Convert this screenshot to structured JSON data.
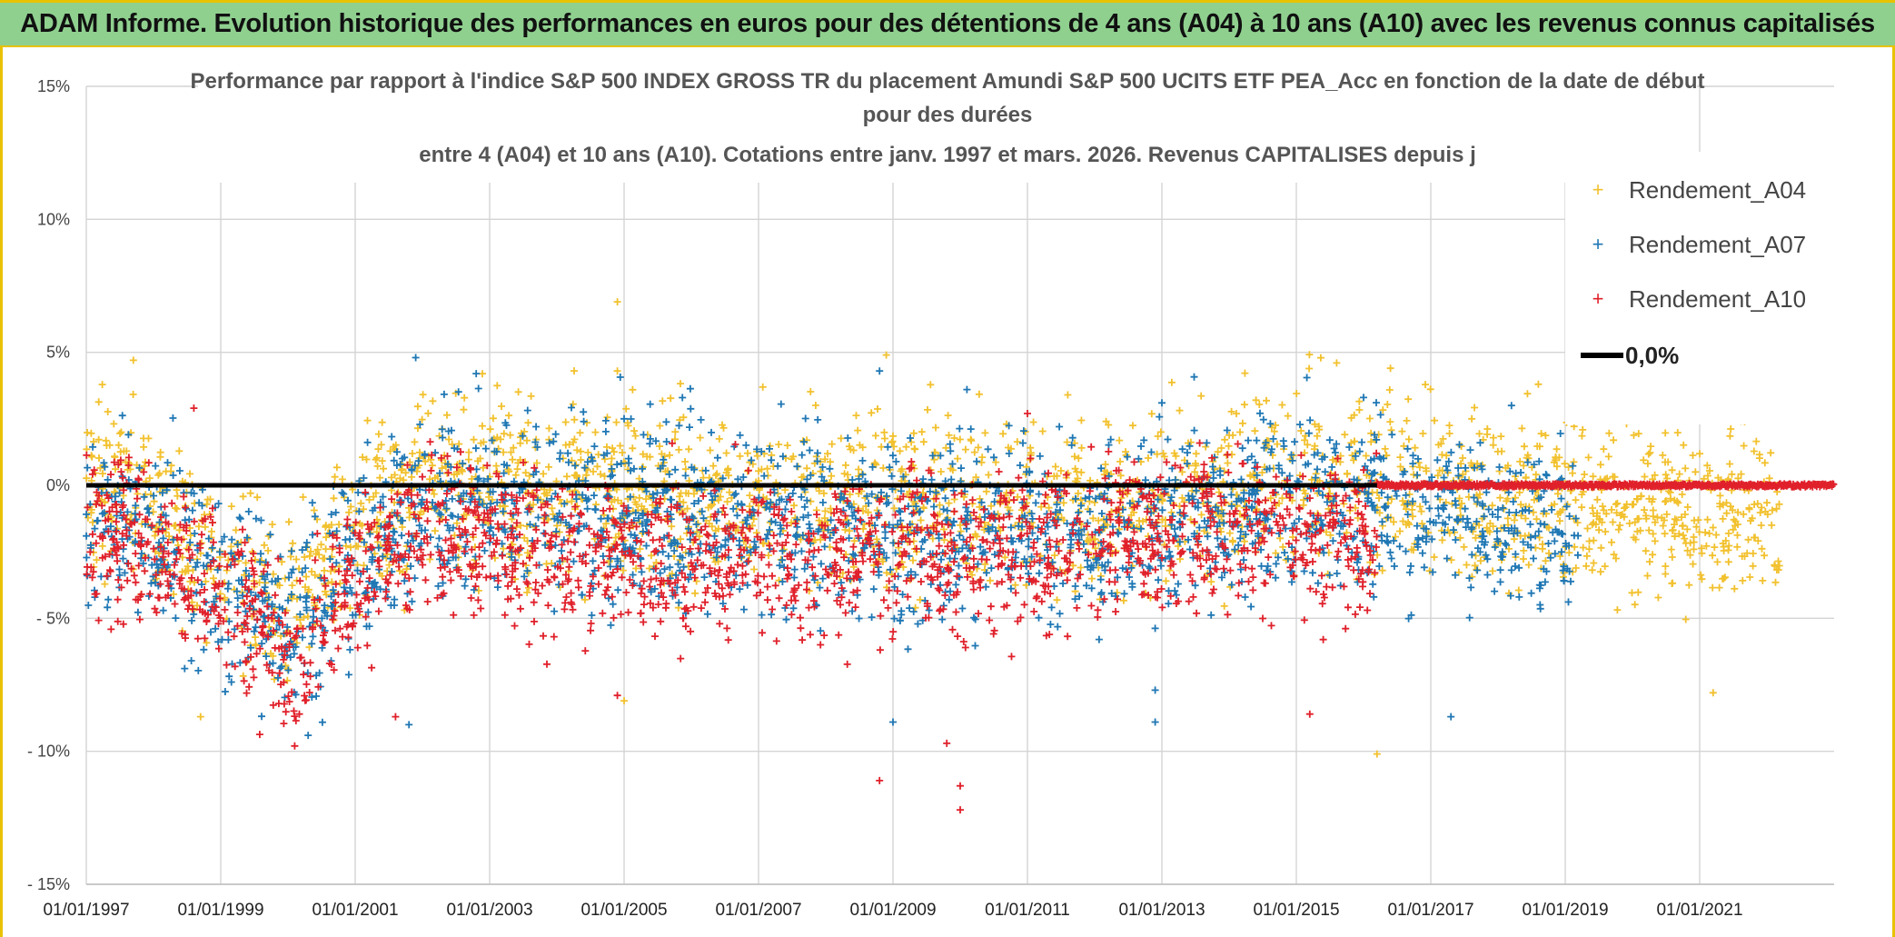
{
  "header": {
    "title": "ADAM Informe. Evolution historique des performances en euros pour des détentions de 4 ans (A04) à 10 ans (A10) avec les revenus connus capitalisés"
  },
  "chart_data": {
    "type": "scatter",
    "title_lines": [
      "Performance par rapport à l'indice S&P 500 INDEX GROSS TR  du placement Amundi S&P 500 UCITS ETF PEA_Acc en fonction de la date de début",
      "pour des durées",
      "entre 4 (A04) et 10 ans (A10). Cotations entre janv. 1997 et mars. 2026. Revenus CAPITALISES depuis j"
    ],
    "xlabel": "",
    "ylabel": "",
    "x_range_years": [
      1997.0,
      2023.0
    ],
    "ylim": [
      -15,
      15
    ],
    "y_ticks": [
      {
        "value": 15,
        "label": "15%"
      },
      {
        "value": 10,
        "label": "10%"
      },
      {
        "value": 5,
        "label": "5%"
      },
      {
        "value": 0,
        "label": "0%"
      },
      {
        "value": -5,
        "label": "- 5%"
      },
      {
        "value": -10,
        "label": "- 10%"
      },
      {
        "value": -15,
        "label": "- 15%"
      }
    ],
    "x_ticks": [
      {
        "value": 1997,
        "label": "01/01/1997"
      },
      {
        "value": 1999,
        "label": "01/01/1999"
      },
      {
        "value": 2001,
        "label": "01/01/2001"
      },
      {
        "value": 2003,
        "label": "01/01/2003"
      },
      {
        "value": 2005,
        "label": "01/01/2005"
      },
      {
        "value": 2007,
        "label": "01/01/2007"
      },
      {
        "value": 2009,
        "label": "01/01/2009"
      },
      {
        "value": 2011,
        "label": "01/01/2011"
      },
      {
        "value": 2013,
        "label": "01/01/2013"
      },
      {
        "value": 2015,
        "label": "01/01/2015"
      },
      {
        "value": 2017,
        "label": "01/01/2017"
      },
      {
        "value": 2019,
        "label": "01/01/2019"
      },
      {
        "value": 2021,
        "label": "01/01/2021"
      }
    ],
    "grid": true,
    "legend_position": "top-right",
    "series": [
      {
        "name": "Rendement_A04",
        "color": "#f2c12e",
        "marker": "+",
        "x_start": 1997.0,
        "x_end": 2022.2,
        "trend": [
          [
            1997.0,
            0.5
          ],
          [
            1998.0,
            -1.0
          ],
          [
            1999.0,
            -3.0
          ],
          [
            2000.0,
            -4.5
          ],
          [
            2001.0,
            -2.0
          ],
          [
            2002.0,
            0.0
          ],
          [
            2003.0,
            0.3
          ],
          [
            2004.0,
            -0.5
          ],
          [
            2005.0,
            0.0
          ],
          [
            2006.0,
            -0.5
          ],
          [
            2007.0,
            -0.3
          ],
          [
            2008.0,
            -0.5
          ],
          [
            2009.0,
            -1.0
          ],
          [
            2010.0,
            -0.5
          ],
          [
            2011.0,
            -0.5
          ],
          [
            2012.0,
            -1.0
          ],
          [
            2013.0,
            -0.5
          ],
          [
            2014.0,
            -0.5
          ],
          [
            2015.0,
            0.3
          ],
          [
            2016.0,
            0.5
          ],
          [
            2017.0,
            0.0
          ],
          [
            2018.0,
            -0.5
          ],
          [
            2019.0,
            -0.5
          ],
          [
            2020.0,
            -0.8
          ],
          [
            2021.0,
            -1.0
          ],
          [
            2022.2,
            -1.5
          ]
        ],
        "spread": 1.6,
        "outliers": [
          [
            1997.7,
            4.7
          ],
          [
            2004.9,
            6.9
          ],
          [
            2004.9,
            4.3
          ],
          [
            2008.9,
            4.9
          ],
          [
            2015.6,
            4.6
          ],
          [
            2016.4,
            4.4
          ],
          [
            2016.2,
            -10.1
          ],
          [
            2018.6,
            3.8
          ],
          [
            2019.8,
            3.5
          ],
          [
            2021.1,
            3.6
          ],
          [
            2021.2,
            -7.8
          ],
          [
            2005.0,
            -8.1
          ],
          [
            1998.7,
            -8.7
          ],
          [
            2014.4,
            3.2
          ],
          [
            2011.6,
            3.4
          ]
        ]
      },
      {
        "name": "Rendement_A07",
        "color": "#1f77b4",
        "marker": "+",
        "x_start": 1997.0,
        "x_end": 2019.2,
        "trend": [
          [
            1997.0,
            -1.0
          ],
          [
            1998.0,
            -2.0
          ],
          [
            1999.0,
            -3.5
          ],
          [
            2000.0,
            -5.5
          ],
          [
            2001.0,
            -3.0
          ],
          [
            2002.0,
            -0.8
          ],
          [
            2003.0,
            -0.5
          ],
          [
            2004.0,
            -1.0
          ],
          [
            2005.0,
            -1.0
          ],
          [
            2006.0,
            -1.2
          ],
          [
            2007.0,
            -1.0
          ],
          [
            2008.0,
            -1.5
          ],
          [
            2009.0,
            -2.0
          ],
          [
            2010.0,
            -1.5
          ],
          [
            2011.0,
            -1.5
          ],
          [
            2012.0,
            -1.8
          ],
          [
            2013.0,
            -1.2
          ],
          [
            2014.0,
            -1.0
          ],
          [
            2015.0,
            -0.5
          ],
          [
            2016.0,
            -0.8
          ],
          [
            2017.0,
            -1.0
          ],
          [
            2018.0,
            -1.5
          ],
          [
            2019.2,
            -2.0
          ]
        ],
        "spread": 1.7,
        "outliers": [
          [
            2001.9,
            4.8
          ],
          [
            2002.8,
            4.2
          ],
          [
            2008.8,
            4.3
          ],
          [
            2009.0,
            -8.9
          ],
          [
            2001.8,
            -9.0
          ],
          [
            2012.9,
            -8.9
          ],
          [
            2017.3,
            -8.7
          ],
          [
            2013.0,
            3.1
          ],
          [
            2010.1,
            3.6
          ],
          [
            2016.0,
            3.3
          ],
          [
            2018.2,
            3.0
          ],
          [
            2012.9,
            -7.7
          ],
          [
            2000.3,
            -9.4
          ]
        ]
      },
      {
        "name": "Rendement_A10",
        "color": "#e0202a",
        "marker": "+",
        "x_start": 1997.0,
        "x_end": 2016.2,
        "trend": [
          [
            1997.0,
            -1.5
          ],
          [
            1998.0,
            -2.5
          ],
          [
            1999.0,
            -4.0
          ],
          [
            2000.0,
            -6.5
          ],
          [
            2001.0,
            -3.5
          ],
          [
            2002.0,
            -1.8
          ],
          [
            2003.0,
            -2.0
          ],
          [
            2004.0,
            -2.5
          ],
          [
            2005.0,
            -2.5
          ],
          [
            2006.0,
            -2.5
          ],
          [
            2007.0,
            -2.5
          ],
          [
            2008.0,
            -3.0
          ],
          [
            2009.0,
            -2.5
          ],
          [
            2010.0,
            -2.5
          ],
          [
            2011.0,
            -2.5
          ],
          [
            2012.0,
            -2.0
          ],
          [
            2013.0,
            -2.0
          ],
          [
            2014.0,
            -1.5
          ],
          [
            2015.0,
            -1.8
          ],
          [
            2016.2,
            -2.0
          ]
        ],
        "spread": 1.5,
        "outliers": [
          [
            2010.0,
            -12.2
          ],
          [
            2010.0,
            -11.3
          ],
          [
            2009.8,
            -9.7
          ],
          [
            2008.8,
            -11.1
          ],
          [
            2000.1,
            -9.8
          ],
          [
            1998.6,
            2.9
          ],
          [
            2015.2,
            -8.6
          ],
          [
            2015.4,
            -5.8
          ],
          [
            2001.6,
            -8.7
          ],
          [
            2011.0,
            2.7
          ],
          [
            2004.9,
            -7.9
          ]
        ],
        "zero_band": {
          "x_start": 2016.2,
          "x_end": 2023.0,
          "value": 0.0
        }
      },
      {
        "name": "0,0%",
        "color": "#000000",
        "type": "line",
        "value": 0.0
      }
    ],
    "legend": [
      {
        "label": "Rendement_A04",
        "color": "#f2c12e",
        "marker": "+"
      },
      {
        "label": "Rendement_A07",
        "color": "#1f77b4",
        "marker": "+"
      },
      {
        "label": "Rendement_A10",
        "color": "#e0202a",
        "marker": "+"
      },
      {
        "label": "0,0%",
        "color": "#000000",
        "marker": "line"
      }
    ]
  }
}
